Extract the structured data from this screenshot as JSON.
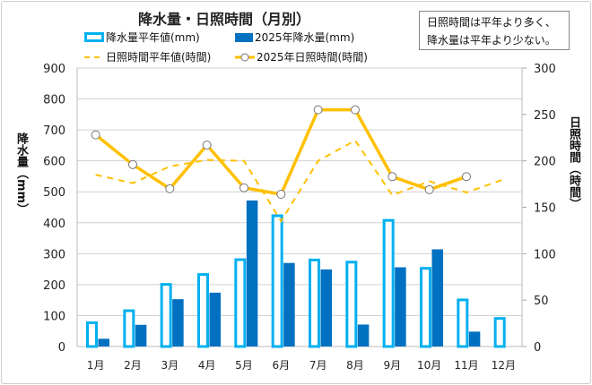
{
  "chart_data": {
    "type": "bar+line",
    "title": "降水量・日照時間（月別）",
    "annotation": [
      "日照時間は平年より多く、",
      "降水量は平年より少ない。"
    ],
    "categories": [
      "1月",
      "2月",
      "3月",
      "4月",
      "5月",
      "6月",
      "7月",
      "8月",
      "9月",
      "10月",
      "11月",
      "12月"
    ],
    "ylabel_left": "降水量（mm）",
    "ylabel_right": "日照時間（時間）",
    "ylim_left": [
      0,
      900
    ],
    "ylim_right": [
      0,
      300
    ],
    "yticks_left": [
      "0",
      "100",
      "200",
      "300",
      "400",
      "500",
      "600",
      "700",
      "800",
      "900"
    ],
    "yticks_right": [
      "0",
      "50",
      "100",
      "150",
      "200",
      "250",
      "300"
    ],
    "grid": true,
    "legend_position": "top",
    "series": [
      {
        "name": "降水量平年値(mm)",
        "kind": "bar",
        "style": "outline",
        "axis": "left",
        "color": "#00b0f0",
        "values": [
          81,
          120,
          205,
          237,
          285,
          427,
          284,
          277,
          412,
          257,
          155,
          95
        ]
      },
      {
        "name": "2025年降水量(mm)",
        "kind": "bar",
        "style": "filled",
        "axis": "left",
        "color": "#0070c0",
        "values": [
          25,
          70,
          153,
          174,
          472,
          270,
          249,
          71,
          256,
          314,
          48,
          null
        ]
      },
      {
        "name": "日照時間平年値(時間)",
        "kind": "line",
        "style": "dashed",
        "axis": "right",
        "color": "#ffc000",
        "values": [
          185,
          176,
          194,
          201,
          200,
          135,
          200,
          222,
          163,
          178,
          166,
          180
        ]
      },
      {
        "name": "2025年日照時間(時間)",
        "kind": "line",
        "style": "solid-markers",
        "axis": "right",
        "color": "#ffc000",
        "values": [
          228,
          196,
          170,
          217,
          171,
          164,
          255,
          255,
          183,
          169,
          183,
          null
        ]
      }
    ]
  }
}
